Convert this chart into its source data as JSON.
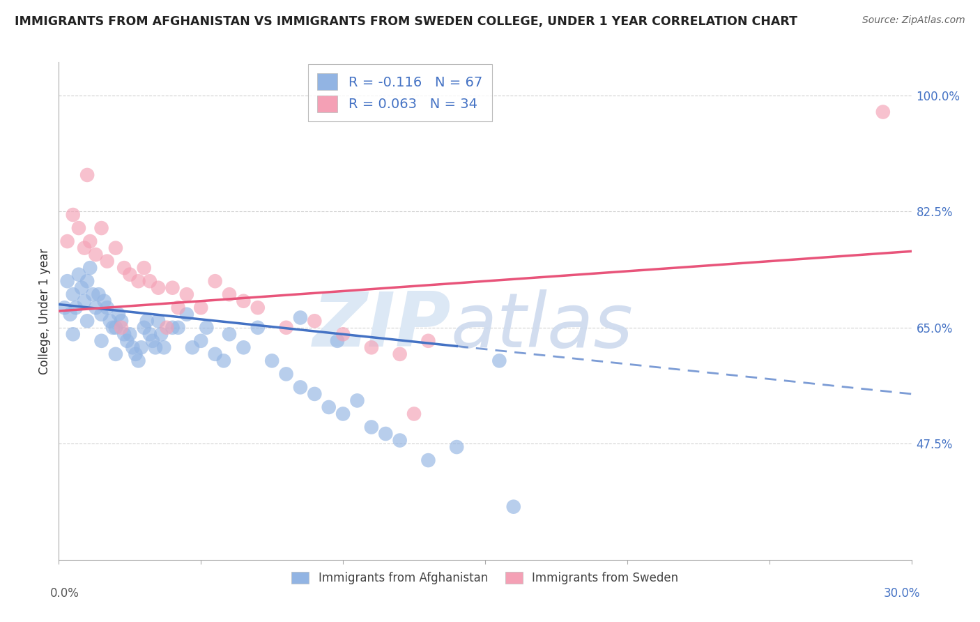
{
  "title": "IMMIGRANTS FROM AFGHANISTAN VS IMMIGRANTS FROM SWEDEN COLLEGE, UNDER 1 YEAR CORRELATION CHART",
  "source": "Source: ZipAtlas.com",
  "ylabel": "College, Under 1 year",
  "legend_label1": "R = -0.116   N = 67",
  "legend_label2": "R = 0.063   N = 34",
  "legend_series1": "Immigrants from Afghanistan",
  "legend_series2": "Immigrants from Sweden",
  "xmin": 0.0,
  "xmax": 30.0,
  "ymin": 30.0,
  "ymax": 105.0,
  "yticks": [
    47.5,
    65.0,
    82.5,
    100.0
  ],
  "xtick_positions": [
    0.0,
    5.0,
    10.0,
    15.0,
    20.0,
    25.0,
    30.0
  ],
  "color_afghanistan": "#92b4e3",
  "color_sweden": "#f4a0b5",
  "color_line_afghanistan": "#4472c4",
  "color_line_sweden": "#e8547a",
  "color_text_blue": "#4472c4",
  "color_text_r_label": "#4472c4",
  "background_color": "#ffffff",
  "grid_color": "#cccccc",
  "right_axis_color": "#4472c4",
  "afg_line_y_at_0": 68.5,
  "afg_line_y_at_30": 55.0,
  "afg_solid_end_x": 14.0,
  "swe_line_y_at_0": 67.5,
  "swe_line_y_at_30": 76.5,
  "afg_x": [
    0.2,
    0.3,
    0.4,
    0.5,
    0.5,
    0.6,
    0.7,
    0.8,
    0.9,
    1.0,
    1.0,
    1.1,
    1.2,
    1.3,
    1.4,
    1.5,
    1.5,
    1.6,
    1.7,
    1.8,
    1.9,
    2.0,
    2.0,
    2.1,
    2.2,
    2.3,
    2.4,
    2.5,
    2.6,
    2.7,
    2.8,
    2.9,
    3.0,
    3.1,
    3.2,
    3.3,
    3.4,
    3.5,
    3.6,
    3.7,
    4.0,
    4.2,
    4.5,
    4.7,
    5.0,
    5.2,
    5.5,
    5.8,
    6.0,
    6.5,
    7.0,
    7.5,
    8.0,
    8.5,
    9.0,
    9.5,
    10.0,
    10.5,
    11.0,
    12.0,
    13.0,
    14.0,
    15.5,
    16.0,
    8.5,
    9.8,
    11.5
  ],
  "afg_y": [
    68.0,
    72.0,
    67.0,
    70.0,
    64.0,
    68.0,
    73.0,
    71.0,
    69.0,
    72.0,
    66.0,
    74.0,
    70.0,
    68.0,
    70.0,
    67.0,
    63.0,
    69.0,
    68.0,
    66.0,
    65.0,
    65.0,
    61.0,
    67.0,
    66.0,
    64.0,
    63.0,
    64.0,
    62.0,
    61.0,
    60.0,
    62.0,
    65.0,
    66.0,
    64.0,
    63.0,
    62.0,
    66.0,
    64.0,
    62.0,
    65.0,
    65.0,
    67.0,
    62.0,
    63.0,
    65.0,
    61.0,
    60.0,
    64.0,
    62.0,
    65.0,
    60.0,
    58.0,
    56.0,
    55.0,
    53.0,
    52.0,
    54.0,
    50.0,
    48.0,
    45.0,
    47.0,
    60.0,
    38.0,
    66.5,
    63.0,
    49.0
  ],
  "swe_x": [
    0.3,
    0.5,
    0.7,
    0.9,
    1.1,
    1.3,
    1.5,
    1.7,
    2.0,
    2.3,
    2.5,
    2.8,
    3.0,
    3.2,
    3.5,
    4.0,
    4.5,
    5.0,
    5.5,
    6.0,
    6.5,
    7.0,
    8.0,
    9.0,
    10.0,
    11.0,
    12.0,
    13.0,
    2.2,
    3.8,
    1.0,
    4.2,
    12.5,
    29.0
  ],
  "swe_y": [
    78.0,
    82.0,
    80.0,
    77.0,
    78.0,
    76.0,
    80.0,
    75.0,
    77.0,
    74.0,
    73.0,
    72.0,
    74.0,
    72.0,
    71.0,
    71.0,
    70.0,
    68.0,
    72.0,
    70.0,
    69.0,
    68.0,
    65.0,
    66.0,
    64.0,
    62.0,
    61.0,
    63.0,
    65.0,
    65.0,
    88.0,
    68.0,
    52.0,
    97.5
  ]
}
